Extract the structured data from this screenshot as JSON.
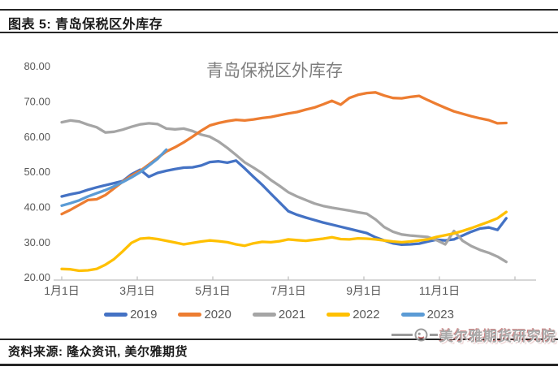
{
  "header": {
    "title": "图表 5: 青岛保税区外库存"
  },
  "footer": {
    "source": "资料来源: 隆众资讯, 美尔雅期货",
    "watermark_text": "美尔雅期货研究院",
    "watermark_logo": "circle-mascot-logo-icon"
  },
  "colors": {
    "rule": "#262626",
    "axis_line": "#BFBFBF",
    "tick_label": "#595959",
    "chart_title": "#7F7F7F",
    "series_2019": "#4472C4",
    "series_2020": "#ED7D31",
    "series_2021": "#A5A5A5",
    "series_2022": "#FFC000",
    "series_2023": "#5B9BD5",
    "watermark_red": "#AA2828"
  },
  "chart_data": {
    "type": "line",
    "title": "青岛保税区外库存",
    "xlabel": "",
    "ylabel": "",
    "ylim": [
      20,
      80
    ],
    "y_ticks": [
      80,
      70,
      60,
      50,
      40,
      30,
      20
    ],
    "y_tick_labels": [
      "80.00",
      "70.00",
      "60.00",
      "50.00",
      "40.00",
      "30.00",
      "20.00"
    ],
    "x_unit": "weekly points, Jan 1 to Dec 31",
    "x_tick_months": [
      0,
      2,
      4,
      6,
      8,
      10
    ],
    "x_tick_labels": [
      "1月1日",
      "3月1日",
      "5月1日",
      "7月1日",
      "9月1日",
      "11月1日"
    ],
    "grid": false,
    "legend_position": "bottom",
    "series": [
      {
        "name": "2019",
        "color": "#4472C4",
        "values": [
          43.0,
          43.6,
          44.1,
          44.9,
          45.6,
          46.2,
          46.8,
          47.4,
          49.3,
          50.6,
          48.6,
          49.7,
          50.3,
          50.8,
          51.2,
          51.3,
          51.8,
          52.8,
          53.0,
          52.6,
          53.2,
          51.0,
          48.6,
          46.3,
          43.8,
          41.3,
          38.8,
          37.8,
          37.0,
          36.3,
          35.6,
          35.0,
          34.4,
          33.8,
          33.2,
          32.6,
          31.4,
          30.5,
          29.7,
          29.3,
          29.4,
          29.6,
          30.2,
          30.7,
          30.5,
          30.8,
          31.9,
          33.0,
          33.9,
          34.2,
          33.5,
          36.8
        ]
      },
      {
        "name": "2020",
        "color": "#ED7D31",
        "values": [
          38.0,
          39.2,
          40.6,
          42.0,
          42.2,
          43.4,
          45.3,
          47.2,
          48.9,
          50.3,
          52.1,
          54.0,
          55.8,
          57.0,
          58.4,
          60.0,
          61.7,
          63.2,
          63.9,
          64.4,
          64.8,
          64.6,
          64.9,
          65.3,
          65.6,
          66.1,
          66.6,
          67.0,
          67.7,
          68.3,
          69.2,
          70.2,
          69.1,
          71.0,
          71.9,
          72.4,
          72.6,
          71.7,
          71.0,
          70.9,
          71.3,
          71.6,
          70.4,
          69.3,
          68.2,
          67.2,
          66.5,
          65.8,
          65.2,
          64.7,
          63.8,
          63.9
        ]
      },
      {
        "name": "2021",
        "color": "#A5A5A5",
        "values": [
          64.1,
          64.6,
          64.3,
          63.4,
          62.7,
          61.2,
          61.4,
          62.0,
          62.8,
          63.5,
          63.8,
          63.6,
          62.3,
          62.1,
          62.3,
          61.6,
          60.6,
          60.0,
          58.6,
          56.8,
          54.8,
          52.7,
          51.2,
          49.6,
          47.7,
          46.0,
          44.2,
          43.0,
          42.0,
          41.0,
          40.3,
          39.8,
          39.4,
          39.0,
          38.5,
          38.1,
          36.5,
          34.3,
          33.0,
          32.2,
          31.9,
          31.7,
          31.5,
          30.6,
          29.4,
          33.2,
          30.4,
          28.9,
          27.8,
          27.0,
          25.9,
          24.4
        ]
      },
      {
        "name": "2022",
        "color": "#FFC000",
        "values": [
          22.4,
          22.3,
          21.9,
          22.0,
          22.4,
          23.6,
          25.2,
          27.4,
          29.8,
          31.0,
          31.2,
          30.9,
          30.4,
          29.9,
          29.4,
          29.8,
          30.2,
          30.5,
          30.3,
          30.0,
          29.4,
          29.0,
          29.7,
          30.1,
          30.0,
          30.3,
          30.8,
          30.6,
          30.4,
          30.7,
          31.0,
          31.4,
          30.9,
          30.8,
          31.1,
          31.0,
          30.8,
          30.5,
          30.2,
          30.0,
          30.2,
          30.5,
          30.8,
          31.5,
          32.0,
          32.5,
          33.2,
          34.0,
          34.9,
          35.8,
          36.8,
          38.6
        ]
      },
      {
        "name": "2023",
        "color": "#5B9BD5",
        "values": [
          40.4,
          41.1,
          41.9,
          43.0,
          43.9,
          44.8,
          45.9,
          47.1,
          48.4,
          49.9,
          51.8,
          53.7,
          56.3
        ]
      }
    ]
  }
}
